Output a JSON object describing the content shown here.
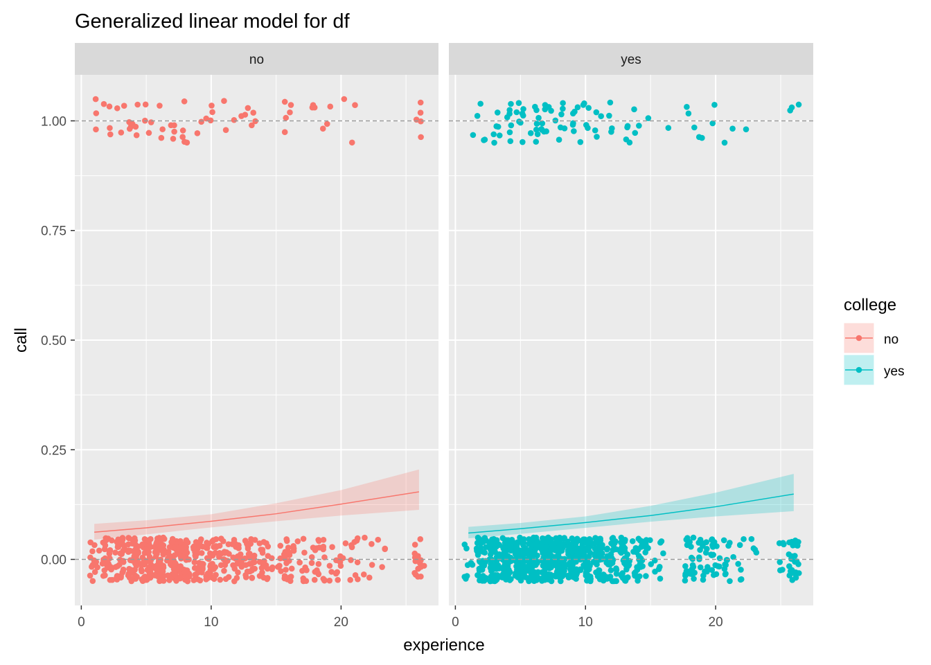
{
  "chart_data": {
    "type": "scatter",
    "title": "Generalized linear model for df",
    "xlabel": "experience",
    "ylabel": "call",
    "xlim": [
      -0.5,
      27.5
    ],
    "ylim": [
      -0.105,
      1.105
    ],
    "x_ticks": [
      0,
      10,
      20
    ],
    "y_ticks": [
      0.0,
      0.25,
      0.5,
      0.75,
      1.0
    ],
    "y_tick_labels": [
      "0.00",
      "0.25",
      "0.50",
      "0.75",
      "1.00"
    ],
    "reference_lines": [
      0,
      1
    ],
    "grid": true,
    "facet_variable": "college",
    "legend": {
      "title": "college",
      "position": "right",
      "entries": [
        {
          "label": "no",
          "color": "#F8766D"
        },
        {
          "label": "yes",
          "color": "#00BFC4"
        }
      ]
    },
    "panels": [
      {
        "strip": "no",
        "color": "#F8766D",
        "points": {
          "jitter_y": 0.05,
          "call_1": [
            1,
            1,
            1,
            2,
            2,
            2,
            2,
            3,
            3,
            3,
            4,
            4,
            4,
            4,
            4,
            4,
            4,
            5,
            5,
            5,
            5,
            6,
            6,
            6,
            7,
            7,
            7,
            7,
            8,
            8,
            8,
            8,
            8,
            9,
            9,
            10,
            10,
            10,
            10,
            11,
            11,
            12,
            12,
            13,
            13,
            13,
            13,
            13,
            16,
            16,
            16,
            16,
            16,
            18,
            18,
            18,
            19,
            19,
            19,
            20,
            21,
            21,
            26,
            26,
            26,
            26,
            26
          ],
          "call_0": [
            {
              "x": 1,
              "n": 14
            },
            {
              "x": 2,
              "n": 28
            },
            {
              "x": 3,
              "n": 34
            },
            {
              "x": 4,
              "n": 50
            },
            {
              "x": 5,
              "n": 54
            },
            {
              "x": 6,
              "n": 60
            },
            {
              "x": 7,
              "n": 44
            },
            {
              "x": 8,
              "n": 46
            },
            {
              "x": 9,
              "n": 36
            },
            {
              "x": 10,
              "n": 34
            },
            {
              "x": 11,
              "n": 24
            },
            {
              "x": 12,
              "n": 24
            },
            {
              "x": 13,
              "n": 28
            },
            {
              "x": 14,
              "n": 20
            },
            {
              "x": 15,
              "n": 8
            },
            {
              "x": 16,
              "n": 22
            },
            {
              "x": 17,
              "n": 10
            },
            {
              "x": 18,
              "n": 14
            },
            {
              "x": 19,
              "n": 12
            },
            {
              "x": 20,
              "n": 10
            },
            {
              "x": 21,
              "n": 10
            },
            {
              "x": 22,
              "n": 5
            },
            {
              "x": 23,
              "n": 4
            },
            {
              "x": 26,
              "n": 16
            }
          ]
        },
        "fit": {
          "x": [
            1,
            5,
            10,
            15,
            20,
            26
          ],
          "y": [
            0.062,
            0.072,
            0.087,
            0.104,
            0.126,
            0.154
          ],
          "lower": [
            0.045,
            0.057,
            0.073,
            0.087,
            0.1,
            0.113
          ],
          "upper": [
            0.081,
            0.089,
            0.103,
            0.128,
            0.158,
            0.205
          ]
        }
      },
      {
        "strip": "yes",
        "color": "#00BFC4",
        "points": {
          "jitter_y": 0.05,
          "call_1": [
            1,
            2,
            2,
            2,
            2,
            3,
            3,
            3,
            3,
            3,
            3,
            4,
            4,
            4,
            4,
            4,
            4,
            4,
            5,
            5,
            5,
            5,
            5,
            5,
            5,
            5,
            6,
            6,
            6,
            6,
            6,
            6,
            6,
            6,
            7,
            7,
            7,
            7,
            7,
            7,
            7,
            7,
            7,
            8,
            8,
            8,
            8,
            8,
            8,
            8,
            9,
            9,
            9,
            9,
            9,
            9,
            10,
            10,
            10,
            10,
            10,
            10,
            11,
            11,
            11,
            11,
            12,
            12,
            12,
            12,
            13,
            13,
            13,
            13,
            14,
            14,
            14,
            15,
            16,
            18,
            18,
            18,
            19,
            19,
            20,
            20,
            21,
            21,
            22,
            26,
            26,
            26
          ],
          "call_0": [
            {
              "x": 1,
              "n": 8
            },
            {
              "x": 2,
              "n": 40
            },
            {
              "x": 3,
              "n": 54
            },
            {
              "x": 4,
              "n": 66
            },
            {
              "x": 5,
              "n": 74
            },
            {
              "x": 6,
              "n": 80
            },
            {
              "x": 7,
              "n": 80
            },
            {
              "x": 8,
              "n": 72
            },
            {
              "x": 9,
              "n": 64
            },
            {
              "x": 10,
              "n": 60
            },
            {
              "x": 11,
              "n": 48
            },
            {
              "x": 12,
              "n": 40
            },
            {
              "x": 13,
              "n": 34
            },
            {
              "x": 14,
              "n": 28
            },
            {
              "x": 15,
              "n": 12
            },
            {
              "x": 16,
              "n": 6
            },
            {
              "x": 18,
              "n": 22
            },
            {
              "x": 19,
              "n": 16
            },
            {
              "x": 20,
              "n": 16
            },
            {
              "x": 21,
              "n": 12
            },
            {
              "x": 22,
              "n": 6
            },
            {
              "x": 23,
              "n": 4
            },
            {
              "x": 25,
              "n": 6
            },
            {
              "x": 26,
              "n": 24
            }
          ]
        },
        "fit": {
          "x": [
            1,
            5,
            10,
            15,
            20,
            26
          ],
          "y": [
            0.06,
            0.07,
            0.084,
            0.1,
            0.12,
            0.149
          ],
          "lower": [
            0.048,
            0.058,
            0.072,
            0.086,
            0.098,
            0.11
          ],
          "upper": [
            0.074,
            0.083,
            0.098,
            0.122,
            0.152,
            0.195
          ]
        }
      }
    ]
  }
}
